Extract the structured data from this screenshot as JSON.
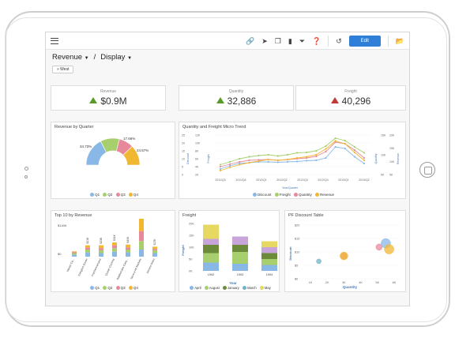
{
  "toolbar": {
    "edit_label": "Edit",
    "icons": [
      "menu-icon",
      "link-icon",
      "share-icon",
      "copy-icon",
      "bookmark-icon",
      "filter-icon",
      "help-icon",
      "undo-icon",
      "folder-icon"
    ]
  },
  "breadcrumb": {
    "part1": "Revenue",
    "separator": "/",
    "part2": "Display"
  },
  "filter_pill": "» West",
  "kpis": [
    {
      "label": "Revenue",
      "value": "$0.9M",
      "trend": "up",
      "color": "#5a9a2a"
    },
    {
      "label": "Quantity",
      "value": "32,886",
      "trend": "up",
      "color": "#5a9a2a"
    },
    {
      "label": "Freight",
      "value": "40,296",
      "trend": "up",
      "color": "#c23b3b"
    }
  ],
  "palette": {
    "blue": "#8ab8e6",
    "green": "#a7cf6e",
    "pink": "#e8899b",
    "yellow": "#f2b731",
    "olive": "#6b8a3a",
    "purple": "#c7a4d9",
    "teal": "#6fb3c8"
  },
  "cards": {
    "revenue_by_quarter": {
      "title": "Revenue by Quarter",
      "legend": [
        "Q1",
        "Q2",
        "Q3",
        "Q4"
      ],
      "chart_data": {
        "type": "pie",
        "categories": [
          "Q1",
          "Q2",
          "Q3",
          "Q4"
        ],
        "values": [
          34.73,
          22.95,
          17.66,
          24.57
        ],
        "labels": [
          "34.73%",
          "",
          "17.66%",
          "24.57%"
        ]
      }
    },
    "quantity_freight_trend": {
      "title": "Quantity and Freight Micro Trend",
      "legend": [
        "Discount",
        "Freight",
        "Quantity",
        "Revenue"
      ],
      "left_ticks": [
        "25",
        "20",
        "15",
        "10",
        "5",
        "0"
      ],
      "left2_ticks": [
        "12K",
        "10K",
        "8K",
        "6K",
        "4K",
        "2K"
      ],
      "right_ticks": [
        "15K",
        "10K",
        "5K"
      ],
      "right2_ticks": [
        "20K",
        "15K",
        "10K",
        "5K"
      ],
      "x_ticks": [
        "2011/Q3",
        "2011/Q4",
        "2012/Q1",
        "2012/Q2",
        "2012/Q3",
        "2012/Q4",
        "2013/Q1",
        "2013/Q2"
      ],
      "x_label": "Year/Quarter",
      "left_axis_label": "Discount",
      "left2_axis_label": "Freight",
      "right_axis_label": "Quantity",
      "right2_axis_label": "Revenue",
      "chart_data": {
        "type": "line",
        "x": [
          "2011/Q3",
          "",
          "2011/Q4",
          "",
          "2012/Q1",
          "",
          "2012/Q2",
          "",
          "2012/Q3",
          "",
          "2012/Q4",
          "",
          "2013/Q1",
          "",
          "2013/Q2",
          ""
        ],
        "series": [
          {
            "name": "Discount",
            "values": [
              0.14,
              0.22,
              0.28,
              0.3,
              0.32,
              0.32,
              0.31,
              0.32,
              0.33,
              0.35,
              0.36,
              0.42,
              0.7,
              0.66,
              0.45,
              0.28
            ]
          },
          {
            "name": "Freight",
            "values": [
              0.25,
              0.32,
              0.4,
              0.45,
              0.48,
              0.5,
              0.47,
              0.5,
              0.55,
              0.56,
              0.6,
              0.72,
              0.92,
              0.86,
              0.7,
              0.55
            ]
          },
          {
            "name": "Quantity",
            "values": [
              0.2,
              0.26,
              0.32,
              0.36,
              0.37,
              0.38,
              0.36,
              0.38,
              0.4,
              0.42,
              0.46,
              0.58,
              0.82,
              0.78,
              0.62,
              0.42
            ]
          },
          {
            "name": "Revenue",
            "values": [
              0.1,
              0.18,
              0.25,
              0.3,
              0.34,
              0.38,
              0.36,
              0.38,
              0.42,
              0.45,
              0.5,
              0.65,
              0.85,
              0.78,
              0.56,
              0.36
            ]
          }
        ]
      }
    },
    "top10_revenue": {
      "title": "Top 10 by Revenue",
      "legend": [
        "Q1",
        "Q2",
        "Q3",
        "Q4"
      ],
      "y_ticks": [
        "$140K",
        "$0"
      ],
      "chart_data": {
        "type": "bar",
        "categories": [
          "Hanari Ca...",
          "Königlich Essen",
          "Frankenversand",
          "Queen Cozinha",
          "Rattlesnake Cany...",
          "Save-a-lot Markets",
          "Simons bistro"
        ],
        "series": [
          {
            "name": "Q1",
            "values": [
              6,
              12,
              10,
              14,
              12,
              20,
              10
            ]
          },
          {
            "name": "Q2",
            "values": [
              4,
              8,
              8,
              10,
              8,
              24,
              8
            ]
          },
          {
            "name": "Q3",
            "values": [
              3,
              6,
              6,
              8,
              6,
              28,
              4
            ]
          },
          {
            "name": "Q4",
            "values": [
              2,
              6,
              8,
              8,
              8,
              38,
              6
            ]
          }
        ],
        "data_labels": [
          "",
          "$21K",
          "$23K",
          "$31K",
          "$40K",
          "",
          "$17K"
        ]
      }
    },
    "freight": {
      "title": "Freight",
      "legend": [
        "April",
        "August",
        "January",
        "March",
        "May"
      ],
      "y_ticks": [
        "20K",
        "15K",
        "10K",
        "5K",
        "0K"
      ],
      "x_ticks": [
        "1992",
        "1993",
        "1994"
      ],
      "x_label": "Year",
      "y_label": "Freight",
      "chart_data": {
        "type": "bar",
        "categories": [
          "1992",
          "1993",
          "1994"
        ],
        "series": [
          {
            "name": "April",
            "values": [
              3.5,
              3,
              2.5
            ]
          },
          {
            "name": "August",
            "values": [
              4,
              5,
              2.5
            ]
          },
          {
            "name": "January",
            "values": [
              3.5,
              3,
              2.5
            ]
          },
          {
            "name": "March",
            "values": [
              2.5,
              3.5,
              2.5
            ]
          },
          {
            "name": "May",
            "values": [
              6,
              0,
              2.5
            ]
          }
        ],
        "ylim": [
          0,
          20000
        ]
      }
    },
    "pf_discount": {
      "title": "PF Discount Table",
      "y_ticks": [
        "$20",
        "$15",
        "$10",
        "$5",
        "$0"
      ],
      "x_ticks": [
        "1K",
        "2K",
        "3K",
        "4K",
        "5K",
        "6K"
      ],
      "x_label": "Quantity",
      "y_label": "Discount",
      "chart_data": {
        "type": "scatter",
        "points": [
          {
            "x": 1.5,
            "y": 6.5,
            "r": 3,
            "color": "#6fb3c8"
          },
          {
            "x": 3.0,
            "y": 8.5,
            "r": 4,
            "color": "#e8899b"
          },
          {
            "x": 3.0,
            "y": 8.5,
            "r": 5,
            "color": "#f2b731"
          },
          {
            "x": 5.1,
            "y": 11.8,
            "r": 4,
            "color": "#e8899b"
          },
          {
            "x": 5.5,
            "y": 13.2,
            "r": 6,
            "color": "#8ab8e6"
          },
          {
            "x": 5.7,
            "y": 11.0,
            "r": 6,
            "color": "#f2b731"
          }
        ]
      }
    }
  }
}
